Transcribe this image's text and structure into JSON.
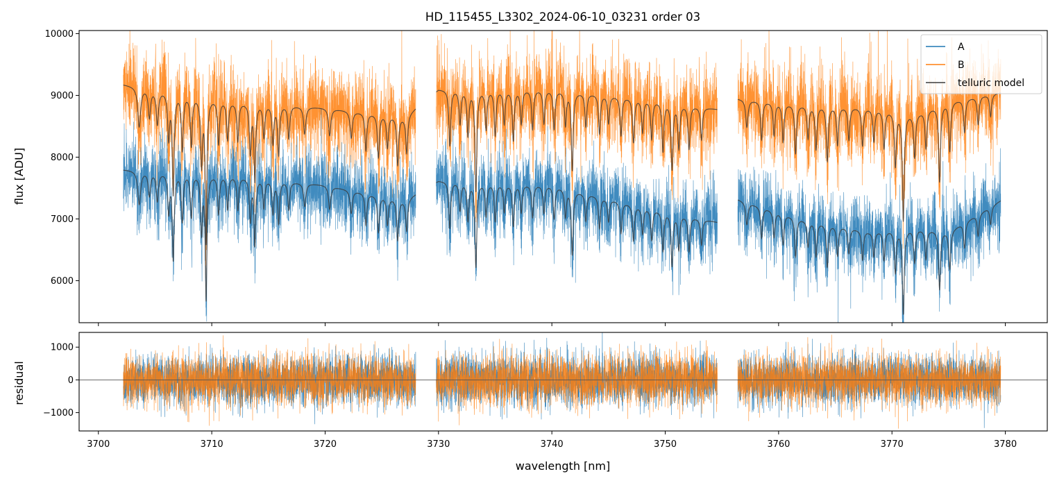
{
  "chart_data": {
    "type": "line",
    "title": "HD_115455_L3302_2024-06-10_03231  order 03",
    "xlabel": "wavelength [nm]",
    "xlim": [
      3698.3,
      3783.7
    ],
    "x_ticks": [
      3700,
      3710,
      3720,
      3730,
      3740,
      3750,
      3760,
      3770,
      3780
    ],
    "x_tick_labels": [
      "3700",
      "3710",
      "3720",
      "3730",
      "3740",
      "3750",
      "3760",
      "3770",
      "3780"
    ],
    "colors": {
      "A": "#1f77b4",
      "B": "#ff7f0e",
      "telluric": "#3b3b3b",
      "zero_line": "#555555"
    },
    "segments": [
      [
        3702.2,
        3728.0
      ],
      [
        3729.8,
        3754.6
      ],
      [
        3756.4,
        3779.6
      ]
    ],
    "panels": [
      {
        "id": "flux",
        "ylabel": "flux [ADU]",
        "ylim": [
          5320,
          10050
        ],
        "y_ticks": [
          6000,
          7000,
          8000,
          9000,
          10000
        ],
        "y_tick_labels": [
          "6000",
          "7000",
          "8000",
          "9000",
          "10000"
        ],
        "legend_position": "upper right",
        "series": [
          {
            "name": "A",
            "continuum": [
              [
                3702.2,
                7800
              ],
              [
                3712,
                7700
              ],
              [
                3720,
                7550
              ],
              [
                3727,
                7300
              ],
              [
                3730,
                7620
              ],
              [
                3740,
                7550
              ],
              [
                3748,
                7200
              ],
              [
                3754.6,
                6950
              ],
              [
                3756.4,
                7320
              ],
              [
                3762,
                7000
              ],
              [
                3768,
                6800
              ],
              [
                3772,
                6850
              ],
              [
                3775,
                6800
              ],
              [
                3779.6,
                7300
              ]
            ],
            "noise": 520
          },
          {
            "name": "B",
            "continuum": [
              [
                3702.2,
                9180
              ],
              [
                3712,
                8900
              ],
              [
                3720,
                8800
              ],
              [
                3727,
                8650
              ],
              [
                3730,
                9100
              ],
              [
                3740,
                9100
              ],
              [
                3748,
                8950
              ],
              [
                3754.6,
                8780
              ],
              [
                3756.4,
                8950
              ],
              [
                3762,
                8850
              ],
              [
                3768,
                8800
              ],
              [
                3772,
                8700
              ],
              [
                3775,
                8900
              ],
              [
                3779.6,
                9050
              ]
            ],
            "noise": 620
          },
          {
            "name": "telluric model",
            "models": [
              "A",
              "B"
            ]
          }
        ],
        "absorption_lines": [
          [
            3703.6,
            0.07,
            0.15
          ],
          [
            3704.5,
            0.05,
            0.12
          ],
          [
            3705.2,
            0.06,
            0.12
          ],
          [
            3706.2,
            0.08,
            0.1
          ],
          [
            3706.6,
            0.18,
            0.1
          ],
          [
            3707.4,
            0.1,
            0.1
          ],
          [
            3708.2,
            0.09,
            0.1
          ],
          [
            3709.1,
            0.12,
            0.1
          ],
          [
            3709.5,
            0.26,
            0.09
          ],
          [
            3710.6,
            0.08,
            0.1
          ],
          [
            3711.4,
            0.07,
            0.1
          ],
          [
            3712.3,
            0.07,
            0.1
          ],
          [
            3713.4,
            0.09,
            0.1
          ],
          [
            3713.8,
            0.14,
            0.09
          ],
          [
            3714.6,
            0.06,
            0.1
          ],
          [
            3715.4,
            0.07,
            0.1
          ],
          [
            3715.9,
            0.09,
            0.1
          ],
          [
            3716.8,
            0.06,
            0.1
          ],
          [
            3718.2,
            0.05,
            0.12
          ],
          [
            3720.4,
            0.05,
            0.12
          ],
          [
            3722.3,
            0.05,
            0.12
          ],
          [
            3723.6,
            0.07,
            0.1
          ],
          [
            3724.7,
            0.08,
            0.1
          ],
          [
            3725.5,
            0.06,
            0.1
          ],
          [
            3726.4,
            0.09,
            0.1
          ],
          [
            3727.2,
            0.07,
            0.1
          ],
          [
            3731.0,
            0.1,
            0.1
          ],
          [
            3731.9,
            0.06,
            0.1
          ],
          [
            3732.6,
            0.08,
            0.1
          ],
          [
            3733.3,
            0.18,
            0.1
          ],
          [
            3734.2,
            0.07,
            0.1
          ],
          [
            3735.0,
            0.08,
            0.1
          ],
          [
            3735.8,
            0.06,
            0.1
          ],
          [
            3736.6,
            0.09,
            0.1
          ],
          [
            3737.3,
            0.06,
            0.1
          ],
          [
            3738.3,
            0.07,
            0.1
          ],
          [
            3739.3,
            0.06,
            0.1
          ],
          [
            3740.2,
            0.07,
            0.1
          ],
          [
            3741.2,
            0.06,
            0.1
          ],
          [
            3741.8,
            0.14,
            0.1
          ],
          [
            3743.0,
            0.06,
            0.1
          ],
          [
            3744.2,
            0.07,
            0.1
          ],
          [
            3745.0,
            0.05,
            0.1
          ],
          [
            3746.1,
            0.07,
            0.1
          ],
          [
            3747.2,
            0.08,
            0.1
          ],
          [
            3748.0,
            0.06,
            0.1
          ],
          [
            3748.8,
            0.07,
            0.1
          ],
          [
            3749.8,
            0.09,
            0.1
          ],
          [
            3750.6,
            0.12,
            0.1
          ],
          [
            3751.2,
            0.08,
            0.1
          ],
          [
            3752.1,
            0.08,
            0.1
          ],
          [
            3753.2,
            0.06,
            0.1
          ],
          [
            3757.2,
            0.05,
            0.12
          ],
          [
            3758.5,
            0.07,
            0.1
          ],
          [
            3759.6,
            0.06,
            0.1
          ],
          [
            3760.4,
            0.07,
            0.1
          ],
          [
            3761.5,
            0.09,
            0.1
          ],
          [
            3762.6,
            0.06,
            0.1
          ],
          [
            3763.3,
            0.08,
            0.1
          ],
          [
            3764.3,
            0.1,
            0.1
          ],
          [
            3765.2,
            0.07,
            0.1
          ],
          [
            3766.2,
            0.06,
            0.1
          ],
          [
            3767.4,
            0.07,
            0.1
          ],
          [
            3768.4,
            0.06,
            0.1
          ],
          [
            3769.3,
            0.07,
            0.1
          ],
          [
            3770.3,
            0.1,
            0.1
          ],
          [
            3771.0,
            0.2,
            0.1
          ],
          [
            3772.0,
            0.08,
            0.1
          ],
          [
            3773.0,
            0.07,
            0.1
          ],
          [
            3774.2,
            0.14,
            0.1
          ],
          [
            3775.1,
            0.09,
            0.1
          ],
          [
            3776.4,
            0.06,
            0.1
          ],
          [
            3777.6,
            0.05,
            0.1
          ],
          [
            3778.7,
            0.04,
            0.1
          ]
        ]
      },
      {
        "id": "residual",
        "ylabel": "residual",
        "ylim": [
          -1560,
          1450
        ],
        "y_ticks": [
          -1000,
          0,
          1000
        ],
        "y_tick_labels": [
          "−1000",
          "0",
          "1000"
        ],
        "zero_line": 0,
        "series": [
          {
            "name": "A",
            "noise": 430
          },
          {
            "name": "B",
            "noise": 430
          }
        ]
      }
    ],
    "legend": [
      "A",
      "B",
      "telluric model"
    ]
  }
}
